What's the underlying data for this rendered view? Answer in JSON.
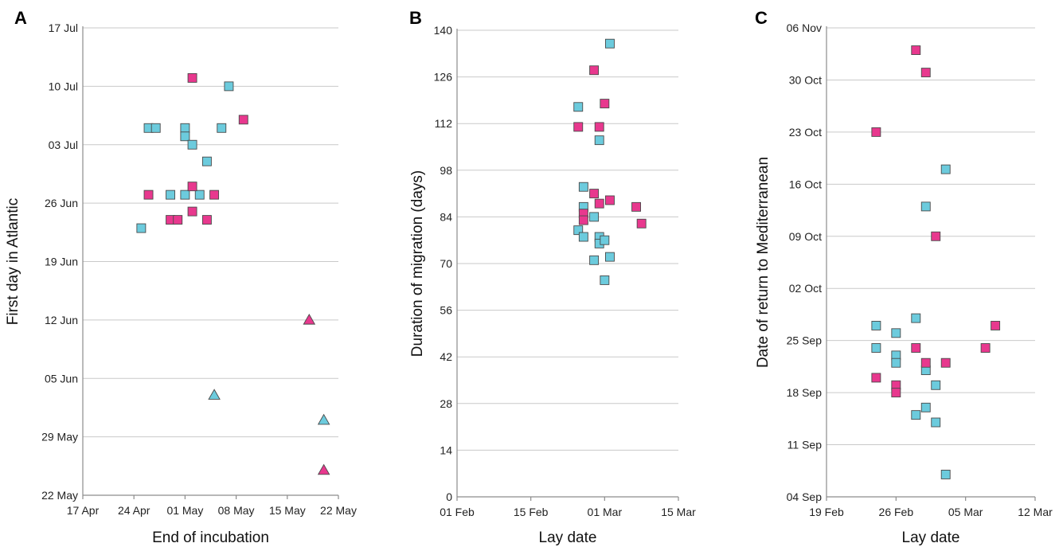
{
  "colors": {
    "cyan": "#6CCBDD",
    "magenta": "#E8388E",
    "marker_edge": "#4a4a4a",
    "grid": "#c9c9c9"
  },
  "chart_data": [
    {
      "type": "scatter",
      "panel_label": "A",
      "xlabel": "End of incubation",
      "ylabel": "First day in Atlantic",
      "x_axis": {
        "type": "date",
        "ticks": [
          "17 Apr",
          "24 Apr",
          "01 May",
          "08 May",
          "15 May",
          "22 May"
        ]
      },
      "y_axis": {
        "type": "date",
        "ticks": [
          "22 May",
          "29 May",
          "05 Jun",
          "12 Jun",
          "19 Jun",
          "26 Jun",
          "03 Jul",
          "10 Jul",
          "17 Jul"
        ]
      },
      "grid": {
        "horizontal": true,
        "vertical": false
      },
      "points": [
        {
          "x": "25 Apr",
          "y": "23 Jun",
          "marker": "square",
          "color": "cyan"
        },
        {
          "x": "26 Apr",
          "y": "05 Jul",
          "marker": "square",
          "color": "cyan"
        },
        {
          "x": "27 Apr",
          "y": "05 Jul",
          "marker": "square",
          "color": "cyan"
        },
        {
          "x": "29 Apr",
          "y": "27 Jun",
          "marker": "square",
          "color": "cyan"
        },
        {
          "x": "01 May",
          "y": "05 Jul",
          "marker": "square",
          "color": "cyan"
        },
        {
          "x": "01 May",
          "y": "04 Jul",
          "marker": "square",
          "color": "cyan"
        },
        {
          "x": "01 May",
          "y": "27 Jun",
          "marker": "square",
          "color": "cyan"
        },
        {
          "x": "02 May",
          "y": "03 Jul",
          "marker": "square",
          "color": "cyan"
        },
        {
          "x": "03 May",
          "y": "27 Jun",
          "marker": "square",
          "color": "cyan"
        },
        {
          "x": "04 May",
          "y": "01 Jul",
          "marker": "square",
          "color": "cyan"
        },
        {
          "x": "06 May",
          "y": "05 Jul",
          "marker": "square",
          "color": "cyan"
        },
        {
          "x": "07 May",
          "y": "10 Jul",
          "marker": "square",
          "color": "cyan"
        },
        {
          "x": "26 Apr",
          "y": "27 Jun",
          "marker": "square",
          "color": "magenta"
        },
        {
          "x": "29 Apr",
          "y": "24 Jun",
          "marker": "square",
          "color": "magenta"
        },
        {
          "x": "30 Apr",
          "y": "24 Jun",
          "marker": "square",
          "color": "magenta"
        },
        {
          "x": "02 May",
          "y": "11 Jul",
          "marker": "square",
          "color": "magenta"
        },
        {
          "x": "02 May",
          "y": "28 Jun",
          "marker": "square",
          "color": "magenta"
        },
        {
          "x": "02 May",
          "y": "25 Jun",
          "marker": "square",
          "color": "magenta"
        },
        {
          "x": "04 May",
          "y": "24 Jun",
          "marker": "square",
          "color": "magenta"
        },
        {
          "x": "05 May",
          "y": "27 Jun",
          "marker": "square",
          "color": "magenta"
        },
        {
          "x": "09 May",
          "y": "06 Jul",
          "marker": "square",
          "color": "magenta"
        },
        {
          "x": "05 May",
          "y": "03 Jun",
          "marker": "triangle",
          "color": "cyan"
        },
        {
          "x": "20 May",
          "y": "31 May",
          "marker": "triangle",
          "color": "cyan"
        },
        {
          "x": "18 May",
          "y": "12 Jun",
          "marker": "triangle",
          "color": "magenta"
        },
        {
          "x": "20 May",
          "y": "25 May",
          "marker": "triangle",
          "color": "magenta"
        }
      ]
    },
    {
      "type": "scatter",
      "panel_label": "B",
      "xlabel": "Lay date",
      "ylabel": "Duration of migration (days)",
      "x_axis": {
        "type": "date",
        "ticks": [
          "01 Feb",
          "15 Feb",
          "01 Mar",
          "15 Mar"
        ]
      },
      "y_axis": {
        "type": "linear",
        "ylim": [
          0,
          140
        ],
        "ticks": [
          0,
          14,
          28,
          42,
          56,
          70,
          84,
          98,
          112,
          126,
          140
        ]
      },
      "grid": {
        "horizontal": true,
        "vertical": false
      },
      "points": [
        {
          "x": "24 Feb",
          "y": 117,
          "marker": "square",
          "color": "cyan"
        },
        {
          "x": "24 Feb",
          "y": 80,
          "marker": "square",
          "color": "cyan"
        },
        {
          "x": "25 Feb",
          "y": 93,
          "marker": "square",
          "color": "cyan"
        },
        {
          "x": "25 Feb",
          "y": 87,
          "marker": "square",
          "color": "cyan"
        },
        {
          "x": "25 Feb",
          "y": 78,
          "marker": "square",
          "color": "cyan"
        },
        {
          "x": "27 Feb",
          "y": 84,
          "marker": "square",
          "color": "cyan"
        },
        {
          "x": "27 Feb",
          "y": 71,
          "marker": "square",
          "color": "cyan"
        },
        {
          "x": "28 Feb",
          "y": 107,
          "marker": "square",
          "color": "cyan"
        },
        {
          "x": "28 Feb",
          "y": 78,
          "marker": "square",
          "color": "cyan"
        },
        {
          "x": "28 Feb",
          "y": 76,
          "marker": "square",
          "color": "cyan"
        },
        {
          "x": "01 Mar",
          "y": 77,
          "marker": "square",
          "color": "cyan"
        },
        {
          "x": "01 Mar",
          "y": 65,
          "marker": "square",
          "color": "cyan"
        },
        {
          "x": "02 Mar",
          "y": 72,
          "marker": "square",
          "color": "cyan"
        },
        {
          "x": "02 Mar",
          "y": 136,
          "marker": "square",
          "color": "cyan"
        },
        {
          "x": "24 Feb",
          "y": 111,
          "marker": "square",
          "color": "magenta"
        },
        {
          "x": "25 Feb",
          "y": 85,
          "marker": "square",
          "color": "magenta"
        },
        {
          "x": "25 Feb",
          "y": 83,
          "marker": "square",
          "color": "magenta"
        },
        {
          "x": "27 Feb",
          "y": 128,
          "marker": "square",
          "color": "magenta"
        },
        {
          "x": "27 Feb",
          "y": 91,
          "marker": "square",
          "color": "magenta"
        },
        {
          "x": "28 Feb",
          "y": 111,
          "marker": "square",
          "color": "magenta"
        },
        {
          "x": "28 Feb",
          "y": 88,
          "marker": "square",
          "color": "magenta"
        },
        {
          "x": "01 Mar",
          "y": 118,
          "marker": "square",
          "color": "magenta"
        },
        {
          "x": "02 Mar",
          "y": 89,
          "marker": "square",
          "color": "magenta"
        },
        {
          "x": "07 Mar",
          "y": 87,
          "marker": "square",
          "color": "magenta"
        },
        {
          "x": "08 Mar",
          "y": 82,
          "marker": "square",
          "color": "magenta"
        }
      ]
    },
    {
      "type": "scatter",
      "panel_label": "C",
      "xlabel": "Lay date",
      "ylabel": "Date of return to Mediterranean",
      "x_axis": {
        "type": "date",
        "ticks": [
          "19 Feb",
          "26 Feb",
          "05 Mar",
          "12 Mar"
        ]
      },
      "y_axis": {
        "type": "date",
        "ticks": [
          "04 Sep",
          "11 Sep",
          "18 Sep",
          "25 Sep",
          "02 Oct",
          "09 Oct",
          "16 Oct",
          "23 Oct",
          "30 Oct",
          "06 Nov"
        ]
      },
      "grid": {
        "horizontal": true,
        "vertical": false
      },
      "points": [
        {
          "x": "24 Feb",
          "y": "27 Sep",
          "marker": "square",
          "color": "cyan"
        },
        {
          "x": "24 Feb",
          "y": "24 Sep",
          "marker": "square",
          "color": "cyan"
        },
        {
          "x": "26 Feb",
          "y": "26 Sep",
          "marker": "square",
          "color": "cyan"
        },
        {
          "x": "26 Feb",
          "y": "23 Sep",
          "marker": "square",
          "color": "cyan"
        },
        {
          "x": "26 Feb",
          "y": "22 Sep",
          "marker": "square",
          "color": "cyan"
        },
        {
          "x": "28 Feb",
          "y": "28 Sep",
          "marker": "square",
          "color": "cyan"
        },
        {
          "x": "28 Feb",
          "y": "15 Sep",
          "marker": "square",
          "color": "cyan"
        },
        {
          "x": "01 Mar",
          "y": "13 Oct",
          "marker": "square",
          "color": "cyan"
        },
        {
          "x": "01 Mar",
          "y": "21 Sep",
          "marker": "square",
          "color": "cyan"
        },
        {
          "x": "01 Mar",
          "y": "16 Sep",
          "marker": "square",
          "color": "cyan"
        },
        {
          "x": "02 Mar",
          "y": "19 Sep",
          "marker": "square",
          "color": "cyan"
        },
        {
          "x": "02 Mar",
          "y": "14 Sep",
          "marker": "square",
          "color": "cyan"
        },
        {
          "x": "03 Mar",
          "y": "18 Oct",
          "marker": "square",
          "color": "cyan"
        },
        {
          "x": "03 Mar",
          "y": "07 Sep",
          "marker": "square",
          "color": "cyan"
        },
        {
          "x": "24 Feb",
          "y": "23 Oct",
          "marker": "square",
          "color": "magenta"
        },
        {
          "x": "24 Feb",
          "y": "20 Sep",
          "marker": "square",
          "color": "magenta"
        },
        {
          "x": "26 Feb",
          "y": "19 Sep",
          "marker": "square",
          "color": "magenta"
        },
        {
          "x": "26 Feb",
          "y": "18 Sep",
          "marker": "square",
          "color": "magenta"
        },
        {
          "x": "28 Feb",
          "y": "03 Nov",
          "marker": "square",
          "color": "magenta"
        },
        {
          "x": "28 Feb",
          "y": "24 Sep",
          "marker": "square",
          "color": "magenta"
        },
        {
          "x": "01 Mar",
          "y": "31 Oct",
          "marker": "square",
          "color": "magenta"
        },
        {
          "x": "01 Mar",
          "y": "22 Sep",
          "marker": "square",
          "color": "magenta"
        },
        {
          "x": "02 Mar",
          "y": "09 Oct",
          "marker": "square",
          "color": "magenta"
        },
        {
          "x": "03 Mar",
          "y": "22 Sep",
          "marker": "square",
          "color": "magenta"
        },
        {
          "x": "07 Mar",
          "y": "24 Sep",
          "marker": "square",
          "color": "magenta"
        },
        {
          "x": "08 Mar",
          "y": "27 Sep",
          "marker": "square",
          "color": "magenta"
        }
      ]
    }
  ]
}
